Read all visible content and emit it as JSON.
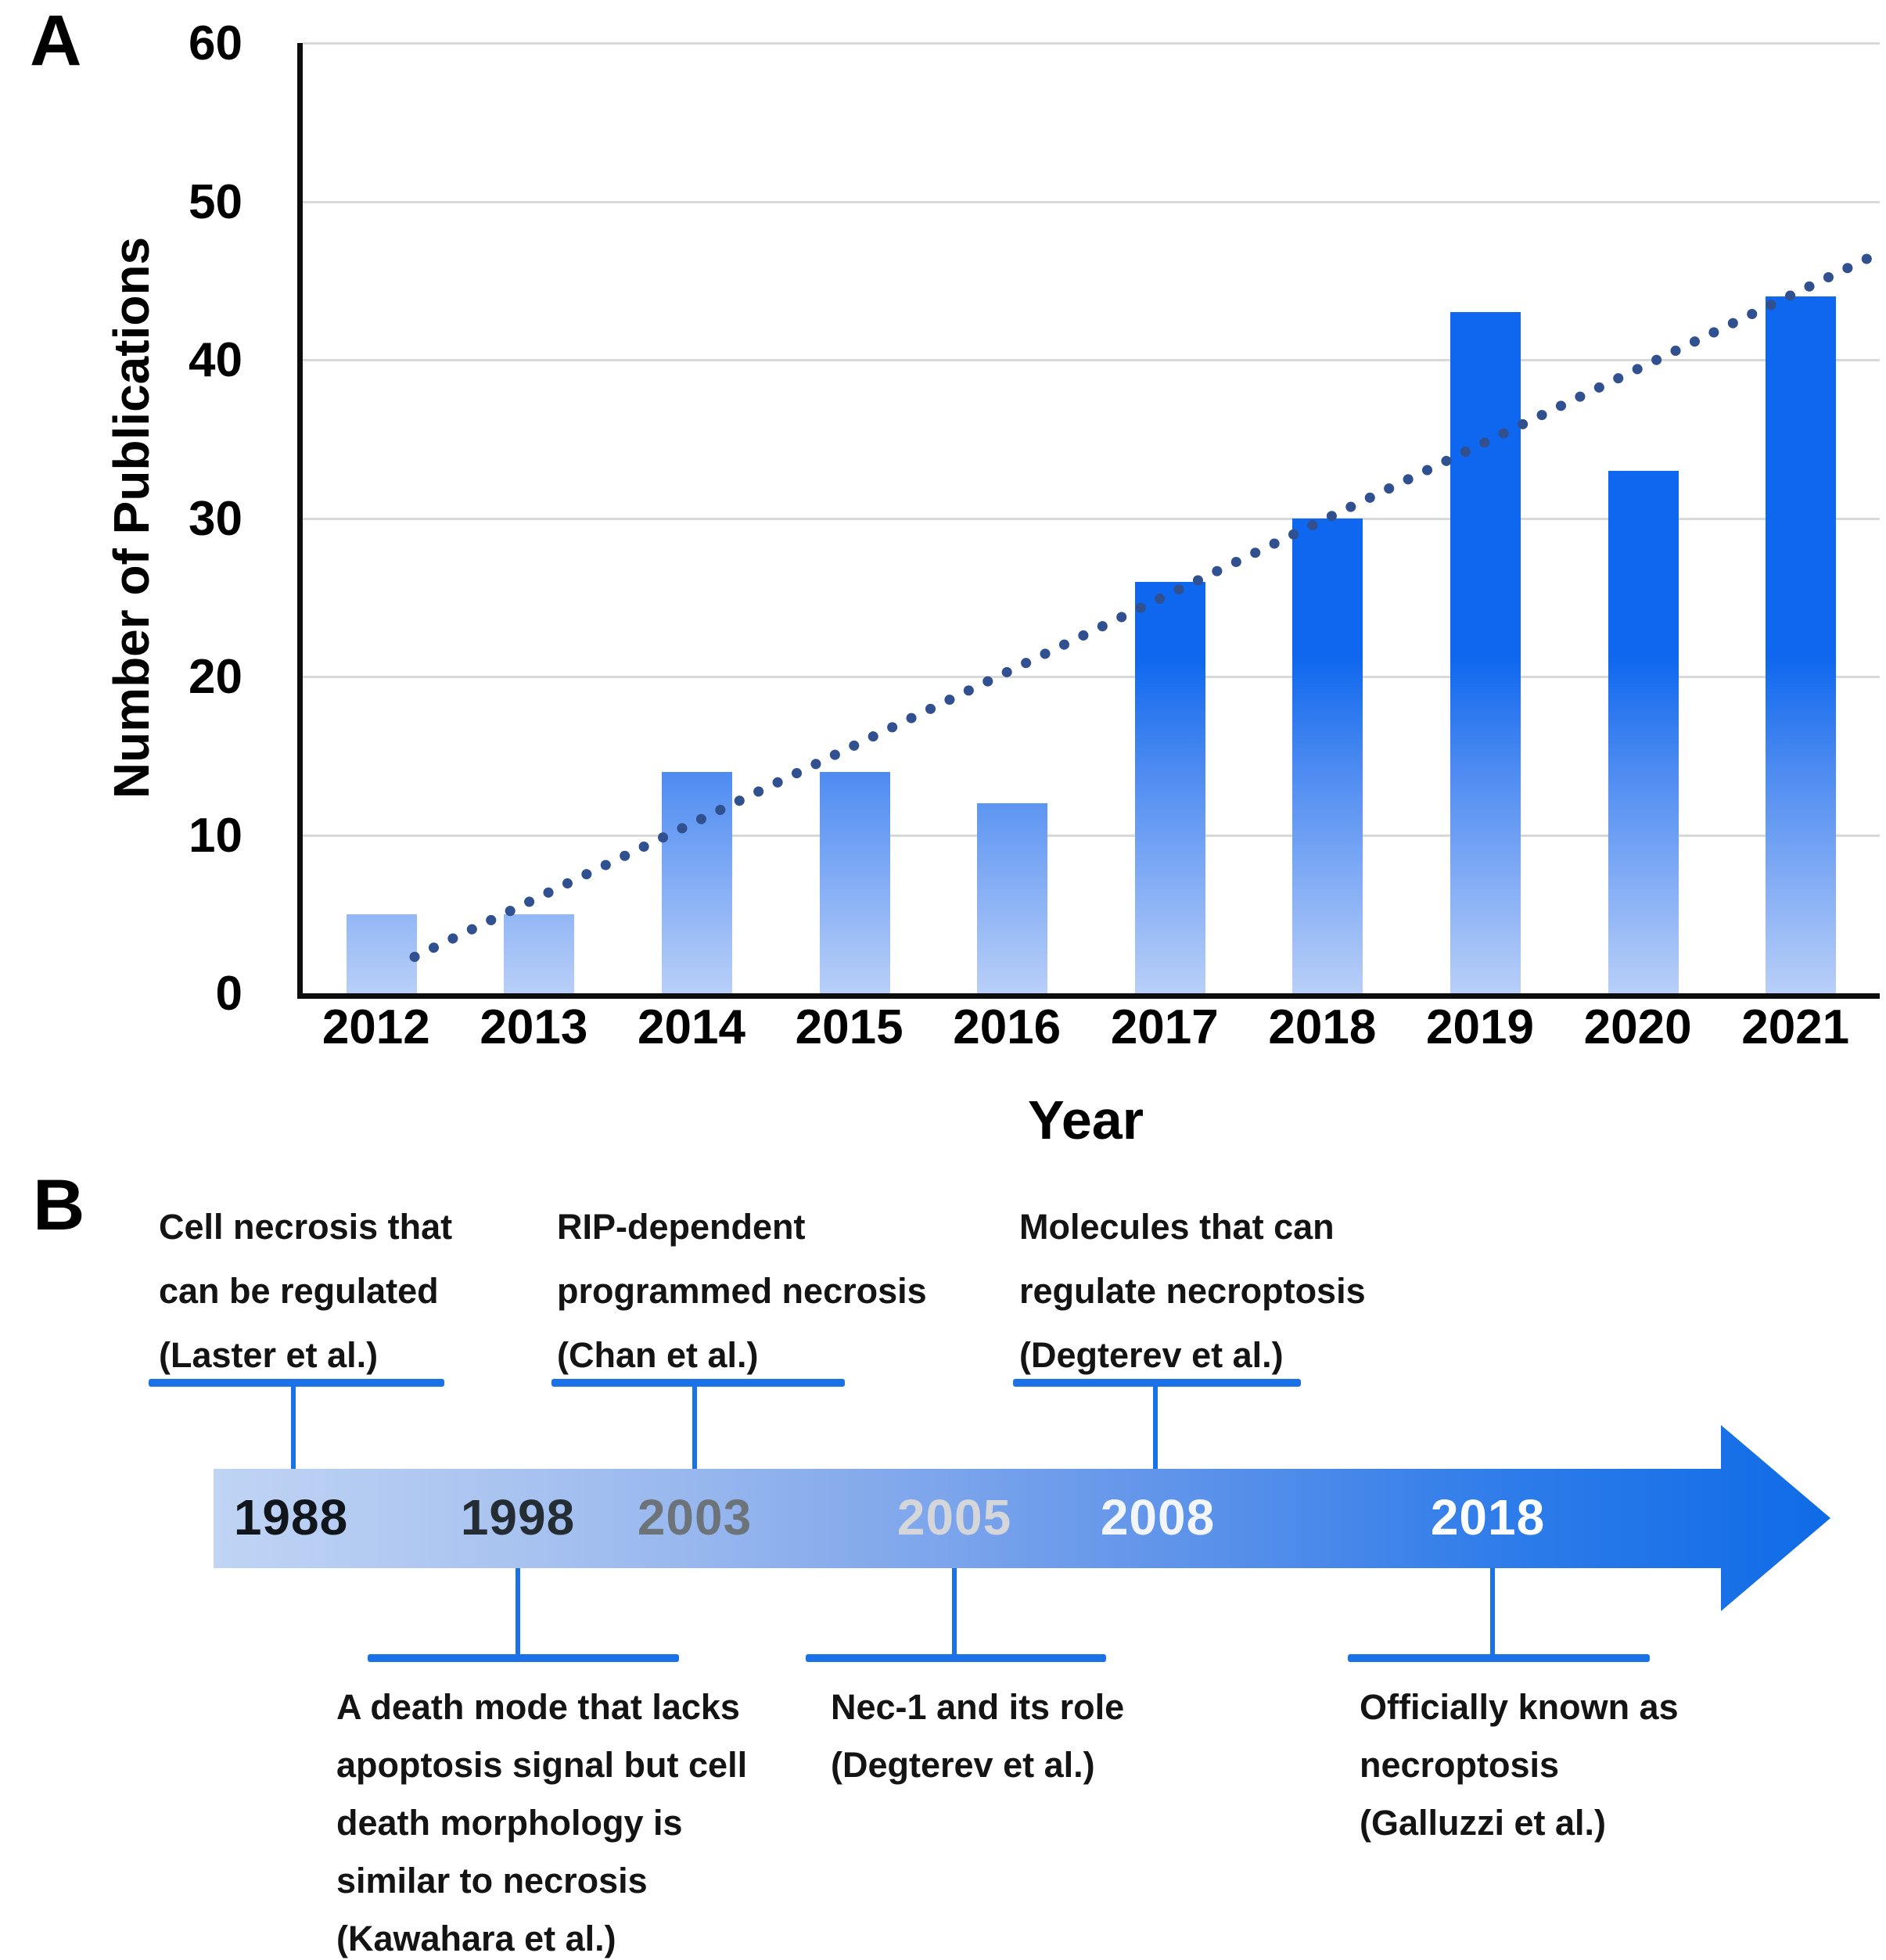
{
  "figure": {
    "panel_a_label": "A",
    "panel_b_label": "B"
  },
  "chart_data": {
    "type": "bar",
    "title": "",
    "xlabel": "Year",
    "ylabel": "Number of Publications",
    "categories": [
      "2012",
      "2013",
      "2014",
      "2015",
      "2016",
      "2017",
      "2018",
      "2019",
      "2020",
      "2021"
    ],
    "values": [
      5,
      5,
      14,
      14,
      12,
      26,
      30,
      43,
      33,
      44
    ],
    "ylim": [
      0,
      60
    ],
    "yticks": [
      0,
      10,
      20,
      30,
      40,
      50,
      60
    ],
    "grid": true,
    "legend_position": "none",
    "bar_color_bottom": "#b9cff8",
    "bar_color_top": "#0e67ee",
    "trendline": {
      "style": "dotted",
      "color": "#30508f",
      "start_value": 2.3,
      "end_value": 46.6,
      "description": "dotted linear trend line rising from ~2 in 2012 to ~46 past 2021"
    }
  },
  "timeline": {
    "arrow_gradient": [
      "#c0d4f4",
      "#a7c2f0",
      "#86abec",
      "#5e93ea",
      "#2e7cea",
      "#0f6be6"
    ],
    "connector_color": "#1b72e8",
    "years": [
      {
        "label": "1988",
        "text_color": "#10161c"
      },
      {
        "label": "1998",
        "text_color": "#242d34"
      },
      {
        "label": "2003",
        "text_color": "#6d7479"
      },
      {
        "label": "2005",
        "text_color": "#d4d6d9"
      },
      {
        "label": "2008",
        "text_color": "#f2f6fa"
      },
      {
        "label": "2018",
        "text_color": "#fbfdff"
      }
    ],
    "top_annotations": [
      {
        "anchor_year": "1988",
        "lines": [
          "Cell necrosis that",
          "can be regulated",
          "(Laster et al.)"
        ]
      },
      {
        "anchor_year": "2003",
        "lines": [
          "RIP-dependent",
          "programmed necrosis",
          "(Chan et al.)"
        ]
      },
      {
        "anchor_year": "2008",
        "lines": [
          "Molecules that can",
          "regulate necroptosis",
          "(Degterev et al.)"
        ]
      }
    ],
    "bottom_annotations": [
      {
        "anchor_year": "1998",
        "lines": [
          "A death mode that lacks",
          "apoptosis signal but cell",
          "death morphology is",
          "similar to necrosis",
          "(Kawahara et al.)"
        ]
      },
      {
        "anchor_year": "2005",
        "lines": [
          "Nec-1 and its role",
          "(Degterev et al.)"
        ]
      },
      {
        "anchor_year": "2018",
        "lines": [
          "Officially known as",
          "necroptosis",
          "(Galluzzi et al.)"
        ]
      }
    ]
  }
}
